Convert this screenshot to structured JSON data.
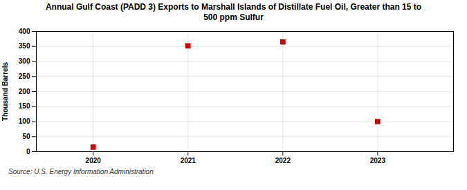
{
  "chart_data": {
    "type": "scatter",
    "title": "Annual Gulf Coast (PADD 3) Exports to Marshall Islands of Distillate Fuel Oil, Greater than 15 to\n500 ppm Sulfur",
    "ylabel": "Thousand Barrels",
    "annotations": [
      "Source: U.S. Energy Information Administration"
    ],
    "x": [
      2020,
      2021,
      2022,
      2023
    ],
    "values": [
      15,
      352,
      365,
      100
    ],
    "color": "#cc0000",
    "marker": "square",
    "xlim": [
      2019.4,
      2023.8
    ],
    "xticks": [
      2020,
      2021,
      2022,
      2023
    ],
    "ylim": [
      0,
      400
    ],
    "yticks": [
      0,
      50,
      100,
      150,
      200,
      250,
      300,
      350,
      400
    ],
    "grid": true
  }
}
